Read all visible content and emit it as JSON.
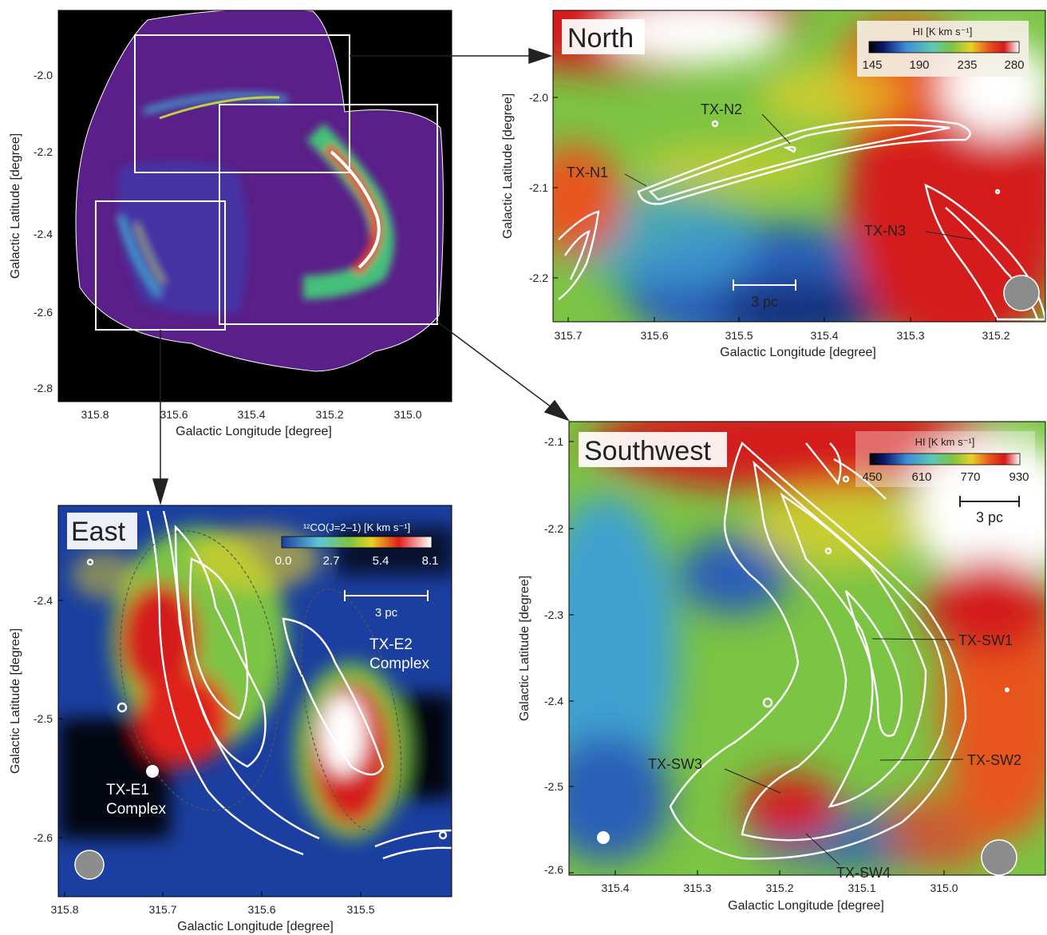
{
  "overview": {
    "ylabel": "Galactic Latitude [degree]",
    "xlabel": "Galactic Longitude [degree]",
    "yticks": [
      "-2.0",
      "-2.2",
      "-2.4",
      "-2.6",
      "-2.8"
    ],
    "xticks": [
      "315.8",
      "315.6",
      "315.4",
      "315.2",
      "315.0"
    ]
  },
  "north": {
    "title": "North",
    "ylabel": "Galactic Latitude [degree]",
    "xlabel": "Galactic Longitude [degree]",
    "yticks": [
      "-2.0",
      "-2.1",
      "-2.2"
    ],
    "xticks": [
      "315.7",
      "315.6",
      "315.5",
      "315.4",
      "315.3",
      "315.2"
    ],
    "colorbar": {
      "label": "HI [K km s⁻¹]",
      "ticks": [
        "145",
        "190",
        "235",
        "280"
      ]
    },
    "scale_label": "3 pc",
    "labels": {
      "n1": "TX-N1",
      "n2": "TX-N2",
      "n3": "TX-N3"
    }
  },
  "east": {
    "title": "East",
    "ylabel": "Galactic Latitude [degree]",
    "xlabel": "Galactic Longitude [degree]",
    "yticks": [
      "-2.4",
      "-2.5",
      "-2.6"
    ],
    "xticks": [
      "315.8",
      "315.7",
      "315.6",
      "315.5"
    ],
    "colorbar": {
      "label": "¹²CO(J=2–1) [K km s⁻¹]",
      "ticks": [
        "0.0",
        "2.7",
        "5.4",
        "8.1"
      ]
    },
    "scale_label": "3 pc",
    "labels": {
      "e1_line1": "TX-E1",
      "e1_line2": "Complex",
      "e2_line1": "TX-E2",
      "e2_line2": "Complex"
    }
  },
  "southwest": {
    "title": "Southwest",
    "ylabel": "Galactic Latitude [degree]",
    "xlabel": "Galactic Longitude [degree]",
    "yticks": [
      "-2.1",
      "-2.2",
      "-2.3",
      "-2.4",
      "-2.5",
      "-2.6"
    ],
    "xticks": [
      "315.4",
      "315.3",
      "315.2",
      "315.1",
      "315.0"
    ],
    "colorbar": {
      "label": "HI [K km s⁻¹]",
      "ticks": [
        "450",
        "610",
        "770",
        "930"
      ]
    },
    "scale_label": "3 pc",
    "labels": {
      "sw1": "TX-SW1",
      "sw2": "TX-SW2",
      "sw3": "TX-SW3",
      "sw4": "TX-SW4"
    }
  },
  "colors": {
    "overview_bg": "#000000",
    "overview_remnant": "#6a2a9a",
    "contour": "#ffffff",
    "beam": "#8c8c8c"
  }
}
